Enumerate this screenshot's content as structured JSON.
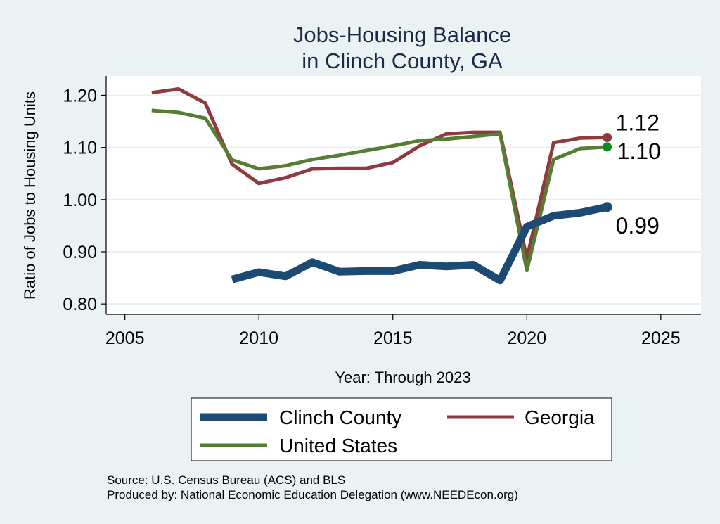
{
  "colors": {
    "background": "#eaf2f3",
    "plot_background": "#ffffff",
    "title": "#1b2a4a",
    "grid": "#e9eef0"
  },
  "chart_data": {
    "type": "line",
    "title_lines": [
      "Jobs-Housing Balance",
      "in Clinch County, GA"
    ],
    "xlabel": "Year: Through 2023",
    "ylabel": "Ratio of Jobs to Housing Units",
    "xlim": [
      2004.3,
      2026.5
    ],
    "ylim": [
      0.78,
      1.237
    ],
    "x_ticks": [
      2005,
      2010,
      2015,
      2020,
      2025
    ],
    "y_ticks": [
      0.8,
      0.9,
      1.0,
      1.1,
      1.2
    ],
    "y_tick_labels": [
      "0.80",
      "0.90",
      "1.00",
      "1.10",
      "1.20"
    ],
    "grid": true,
    "legend_position": "bottom",
    "series": [
      {
        "key": "clinch",
        "name": "Clinch County",
        "color": "#1d4a72",
        "stroke_width": 11,
        "x": [
          2009,
          2010,
          2011,
          2012,
          2013,
          2014,
          2015,
          2016,
          2017,
          2018,
          2019,
          2020,
          2021,
          2022,
          2023
        ],
        "y": [
          0.847,
          0.861,
          0.853,
          0.88,
          0.862,
          0.863,
          0.863,
          0.875,
          0.872,
          0.875,
          0.845,
          0.948,
          0.969,
          0.975,
          0.986
        ],
        "end_label": "0.99"
      },
      {
        "key": "georgia",
        "name": "Georgia",
        "color": "#8f3a3f",
        "stroke_width": 5,
        "x": [
          2006,
          2007,
          2008,
          2009,
          2010,
          2011,
          2012,
          2013,
          2014,
          2015,
          2016,
          2017,
          2018,
          2019,
          2020,
          2021,
          2022,
          2023
        ],
        "y": [
          1.205,
          1.212,
          1.185,
          1.068,
          1.031,
          1.042,
          1.059,
          1.06,
          1.06,
          1.071,
          1.103,
          1.126,
          1.129,
          1.129,
          0.887,
          1.109,
          1.118,
          1.119
        ],
        "end_label": "1.12"
      },
      {
        "key": "us",
        "name": "United States",
        "color": "#577c34",
        "stroke_width": 5,
        "x": [
          2006,
          2007,
          2008,
          2009,
          2010,
          2011,
          2012,
          2013,
          2014,
          2015,
          2016,
          2017,
          2018,
          2019,
          2020,
          2021,
          2022,
          2023
        ],
        "y": [
          1.171,
          1.167,
          1.156,
          1.076,
          1.059,
          1.065,
          1.077,
          1.085,
          1.094,
          1.103,
          1.113,
          1.116,
          1.121,
          1.126,
          0.864,
          1.077,
          1.098,
          1.101
        ],
        "end_label": "1.10"
      }
    ],
    "source_lines": [
      "Source: U.S. Census Bureau (ACS) and BLS",
      "Produced by: National Economic Education Delegation (www.NEEDEcon.org)"
    ]
  }
}
